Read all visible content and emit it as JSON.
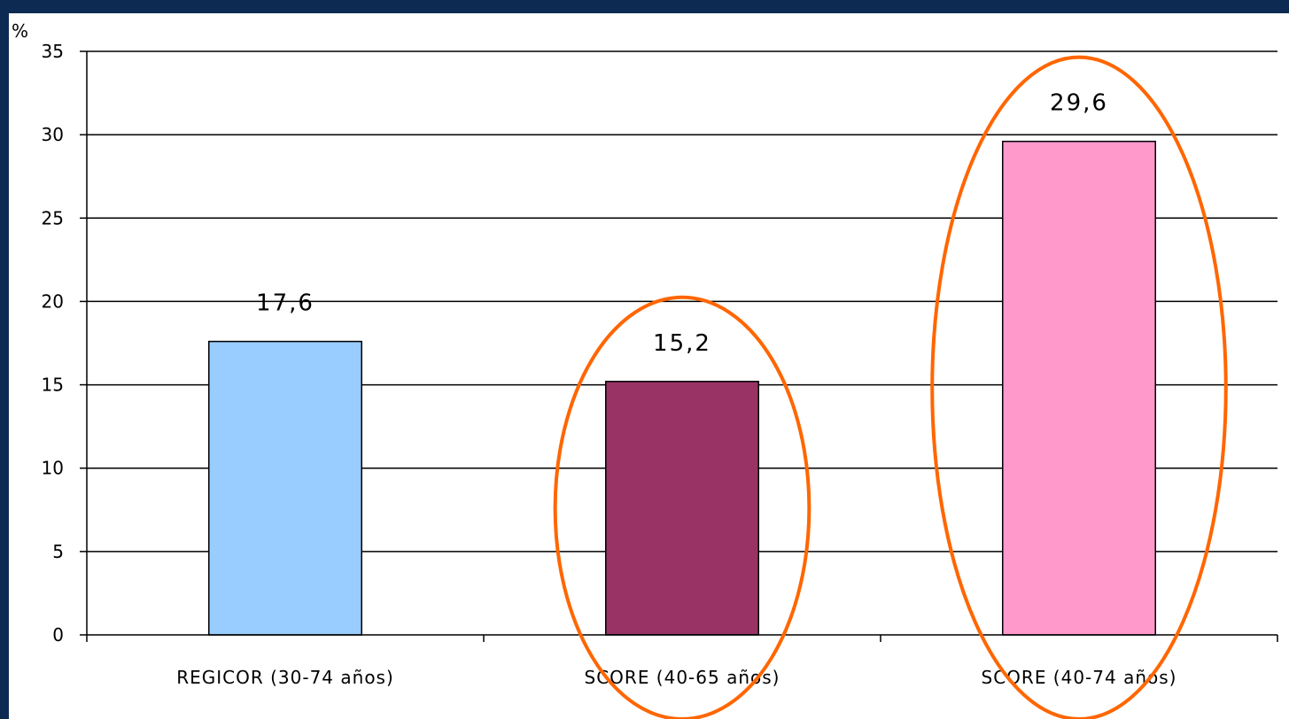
{
  "chart_data": {
    "type": "bar",
    "ylabel": "%",
    "ylim": [
      0,
      35
    ],
    "yticks": [
      0,
      5,
      10,
      15,
      20,
      25,
      30,
      35
    ],
    "grid": true,
    "categories": [
      "REGICOR (30-74 años)",
      "SCORE (40-65 años)",
      "SCORE (40-74 años)"
    ],
    "values": [
      17.6,
      15.2,
      29.6
    ],
    "value_labels": [
      "17,6",
      "15,2",
      "29,6"
    ],
    "colors": [
      "#99ccff",
      "#993366",
      "#ff99cc"
    ],
    "highlighted": [
      false,
      true,
      true
    ],
    "highlight_color": "#ff6600"
  }
}
